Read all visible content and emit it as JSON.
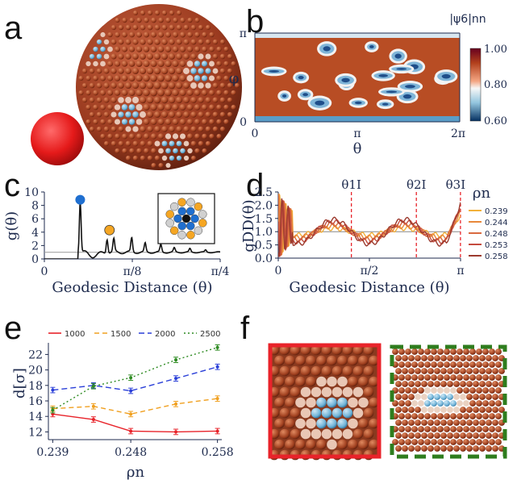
{
  "panel_labels": [
    "a",
    "b",
    "c",
    "d",
    "e",
    "f"
  ],
  "colors": {
    "red_series": "#e8232a",
    "orange_series": "#f0a020",
    "blue_series": "#2a3fd8",
    "green_series": "#2e8b22",
    "marker_blue": "#1f6fd0",
    "marker_orange": "#f5a623",
    "frame_red": "#e8232a",
    "frame_green": "#2e7d1e"
  },
  "panel_b": {
    "y_axis_label": "φ",
    "x_axis_label": "θ",
    "x_ticks": [
      "0",
      "π",
      "2π"
    ],
    "y_ticks": [
      "0",
      "π"
    ],
    "colorbar_title": "|ψ6|nn",
    "colorbar_ticks": [
      "1.00",
      "0.80",
      "0.60"
    ],
    "colorbar_range": [
      0.6,
      1.0
    ]
  },
  "chart_data": [
    {
      "panel": "c",
      "type": "line",
      "ylabel": "g(θ)",
      "xlabel": "Geodesic Distance (θ)",
      "x_ticks": [
        "0",
        "π/8",
        "π/4"
      ],
      "y_ticks": [
        "0",
        "2",
        "4",
        "6",
        "8",
        "10"
      ],
      "xlim": [
        0,
        0.785
      ],
      "ylim": [
        0,
        10
      ],
      "reference_line": 1,
      "peaks": [
        {
          "x": 0.16,
          "y": 8.6
        },
        {
          "x": 0.28,
          "y": 3.1
        },
        {
          "x": 0.31,
          "y": 2.9
        },
        {
          "x": 0.39,
          "y": 3.1
        },
        {
          "x": 0.45,
          "y": 2.3
        },
        {
          "x": 0.52,
          "y": 2.1
        },
        {
          "x": 0.58,
          "y": 1.6
        },
        {
          "x": 0.65,
          "y": 1.5
        },
        {
          "x": 0.72,
          "y": 1.3
        }
      ]
    },
    {
      "panel": "d",
      "type": "line",
      "ylabel": "gDD(θ)",
      "xlabel": "Geodesic Distance (θ)",
      "x_ticks": [
        "0",
        "π/2",
        "π"
      ],
      "y_ticks": [
        "0.0",
        "0.5",
        "1.0",
        "1.5",
        "2.0",
        "2.5"
      ],
      "xlim": [
        0,
        3.1416
      ],
      "ylim": [
        0,
        2.5
      ],
      "legend_title": "ρn",
      "annotations": [
        "θ1I",
        "θ2I",
        "θ3I"
      ],
      "annotation_x": [
        1.26,
        2.38,
        3.14
      ],
      "series": [
        {
          "name": "0.239",
          "color": "#f2b13a"
        },
        {
          "name": "0.244",
          "color": "#e8883a"
        },
        {
          "name": "0.248",
          "color": "#d96a3f"
        },
        {
          "name": "0.253",
          "color": "#c44b3e"
        },
        {
          "name": "0.258",
          "color": "#9c3a2e"
        }
      ]
    },
    {
      "panel": "e",
      "type": "line",
      "ylabel": "d[σ]",
      "xlabel": "ρn",
      "x_ticks": [
        "0.239",
        "0.248",
        "0.258"
      ],
      "y_ticks": [
        "12",
        "14",
        "16",
        "18",
        "20",
        "22"
      ],
      "xlim": [
        0.2385,
        0.2585
      ],
      "ylim": [
        11,
        23.5
      ],
      "x": [
        0.239,
        0.2437,
        0.248,
        0.2532,
        0.258
      ],
      "series": [
        {
          "name": "1000",
          "values": [
            14.3,
            13.6,
            12.1,
            12.0,
            12.1
          ]
        },
        {
          "name": "1500",
          "values": [
            15.0,
            15.3,
            14.3,
            15.6,
            16.3
          ]
        },
        {
          "name": "2000",
          "values": [
            17.4,
            18.0,
            17.3,
            18.9,
            20.4
          ]
        },
        {
          "name": "2500",
          "values": [
            14.8,
            17.9,
            19.0,
            21.3,
            22.9
          ]
        }
      ]
    }
  ]
}
